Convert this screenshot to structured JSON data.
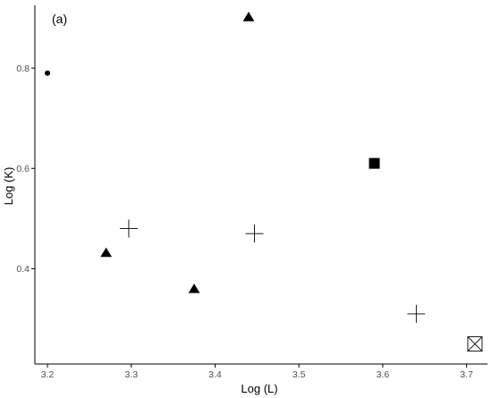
{
  "chart_data": {
    "type": "scatter",
    "panel_label": "(a)",
    "xlabel": "Log (L)",
    "ylabel": "Log (K)",
    "xlim": [
      3.185,
      3.725
    ],
    "ylim": [
      0.21,
      0.925
    ],
    "x_ticks": [
      {
        "value": 3.2,
        "label": "3.2"
      },
      {
        "value": 3.3,
        "label": "3.3"
      },
      {
        "value": 3.4,
        "label": "3.4"
      },
      {
        "value": 3.5,
        "label": "3.5"
      },
      {
        "value": 3.6,
        "label": "3.6"
      },
      {
        "value": 3.7,
        "label": "3.7"
      }
    ],
    "y_ticks": [
      {
        "value": 0.4,
        "label": "0.4"
      },
      {
        "value": 0.6,
        "label": "0.6"
      },
      {
        "value": 0.8,
        "label": "0.8"
      }
    ],
    "grid": false,
    "legend": "none",
    "points": [
      {
        "x": 3.2,
        "y": 0.79,
        "shape": "circle"
      },
      {
        "x": 3.27,
        "y": 0.432,
        "shape": "triangle"
      },
      {
        "x": 3.297,
        "y": 0.48,
        "shape": "plus"
      },
      {
        "x": 3.375,
        "y": 0.36,
        "shape": "triangle"
      },
      {
        "x": 3.44,
        "y": 0.902,
        "shape": "triangle"
      },
      {
        "x": 3.447,
        "y": 0.47,
        "shape": "plus"
      },
      {
        "x": 3.59,
        "y": 0.61,
        "shape": "square"
      },
      {
        "x": 3.64,
        "y": 0.31,
        "shape": "plus"
      },
      {
        "x": 3.71,
        "y": 0.25,
        "shape": "square-x"
      }
    ],
    "colors": {
      "marker": "#000000",
      "axis": "#000000",
      "tick_label": "#4d4d4d",
      "background": "#ffffff"
    }
  }
}
